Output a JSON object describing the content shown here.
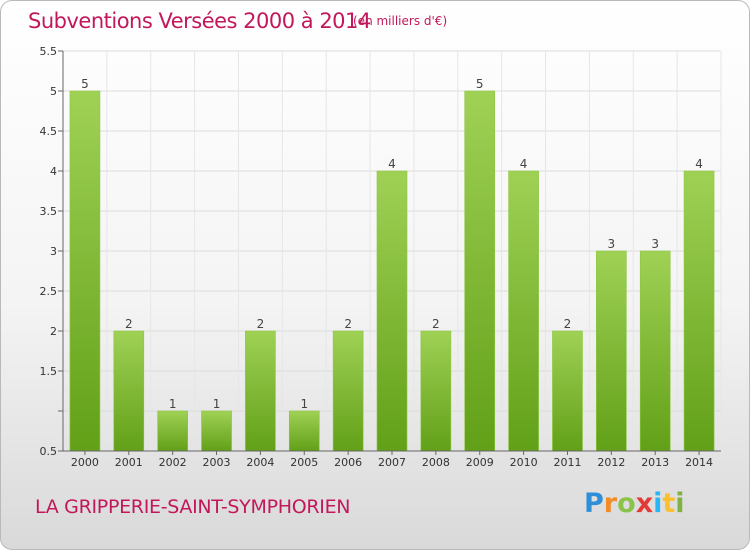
{
  "header": {
    "title": "Subventions Versées 2000 à 2014",
    "unit": "(en milliers d'€)"
  },
  "footer": {
    "commune": "LA GRIPPERIE-SAINT-SYMPHORIEN",
    "logo": "Proxiti"
  },
  "colors": {
    "title": "#c2185b",
    "bar_top": "#9fd155",
    "bar_bottom": "#62a018",
    "grid": "#dcdcdc"
  },
  "chart_data": {
    "type": "bar",
    "title": "Subventions Versées 2000 à 2014",
    "subtitle": "(en milliers d'€)",
    "categories": [
      "2000",
      "2001",
      "2002",
      "2003",
      "2004",
      "2005",
      "2006",
      "2007",
      "2008",
      "2009",
      "2010",
      "2011",
      "2012",
      "2013",
      "2014"
    ],
    "values": [
      5,
      2,
      1,
      1,
      2,
      1,
      2,
      4,
      2,
      5,
      4,
      2,
      3,
      3,
      4
    ],
    "ylim": [
      0.5,
      5.5
    ],
    "yticks": [
      0.5,
      1,
      1.5,
      2,
      2.5,
      3,
      3.5,
      4,
      4.5,
      5,
      5.5
    ],
    "ytick_labels": [
      "0.5",
      "",
      "1.5",
      "2",
      "2.5",
      "3",
      "3.5",
      "4",
      "4.5",
      "5",
      "5.5"
    ],
    "grid": true,
    "data_labels": true
  }
}
